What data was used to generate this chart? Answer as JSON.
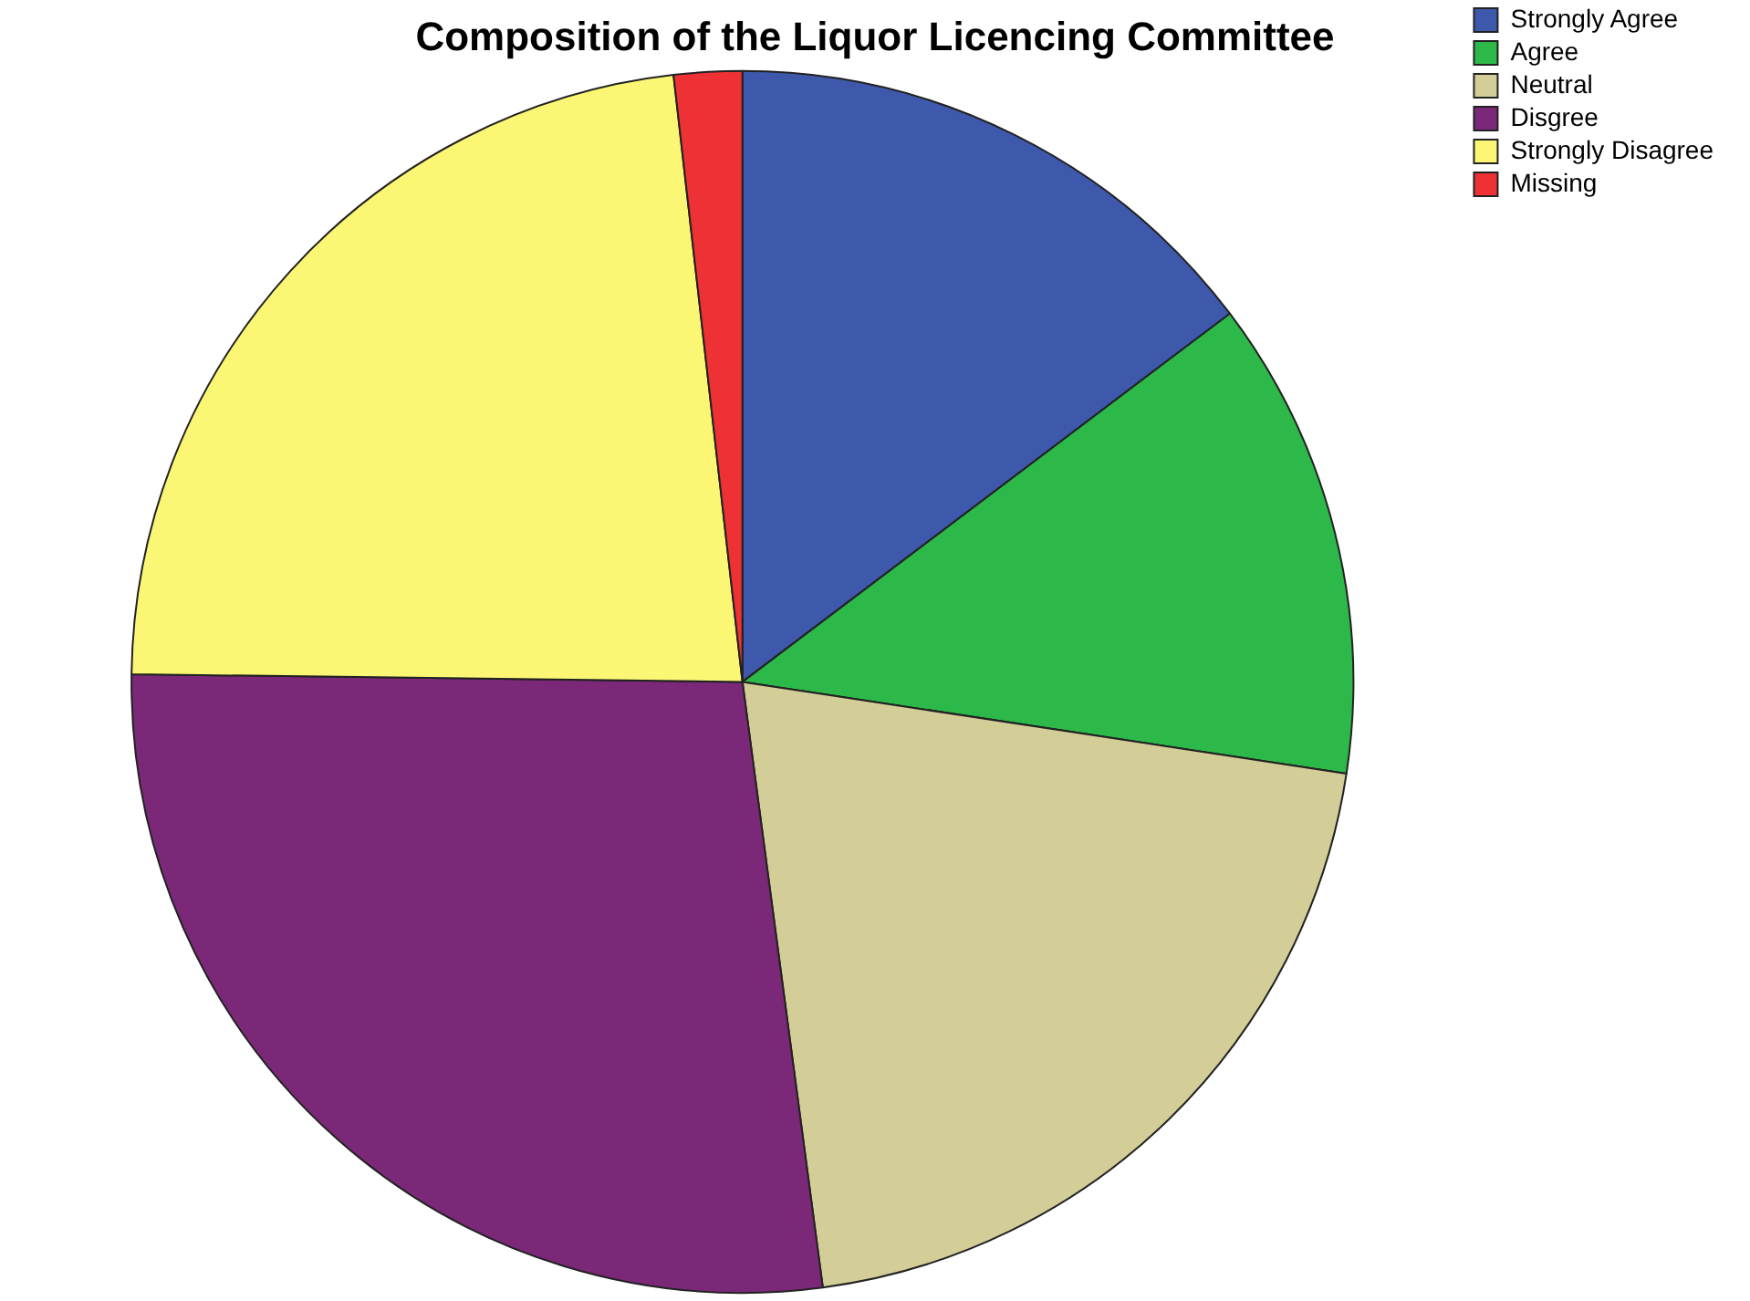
{
  "chart_data": {
    "type": "pie",
    "title": "Composition of the Liquor Licencing Committee",
    "categories": [
      "Strongly Agree",
      "Agree",
      "Neutral",
      "Disgree",
      "Strongly Disagree",
      "Missing"
    ],
    "values": [
      14.7,
      12.7,
      20.5,
      27.3,
      23.0,
      1.8
    ],
    "colors": [
      "#3e58ac",
      "#2db84a",
      "#d3ce97",
      "#7b2879",
      "#fbf774",
      "#ee3135"
    ],
    "legend": "top right"
  }
}
